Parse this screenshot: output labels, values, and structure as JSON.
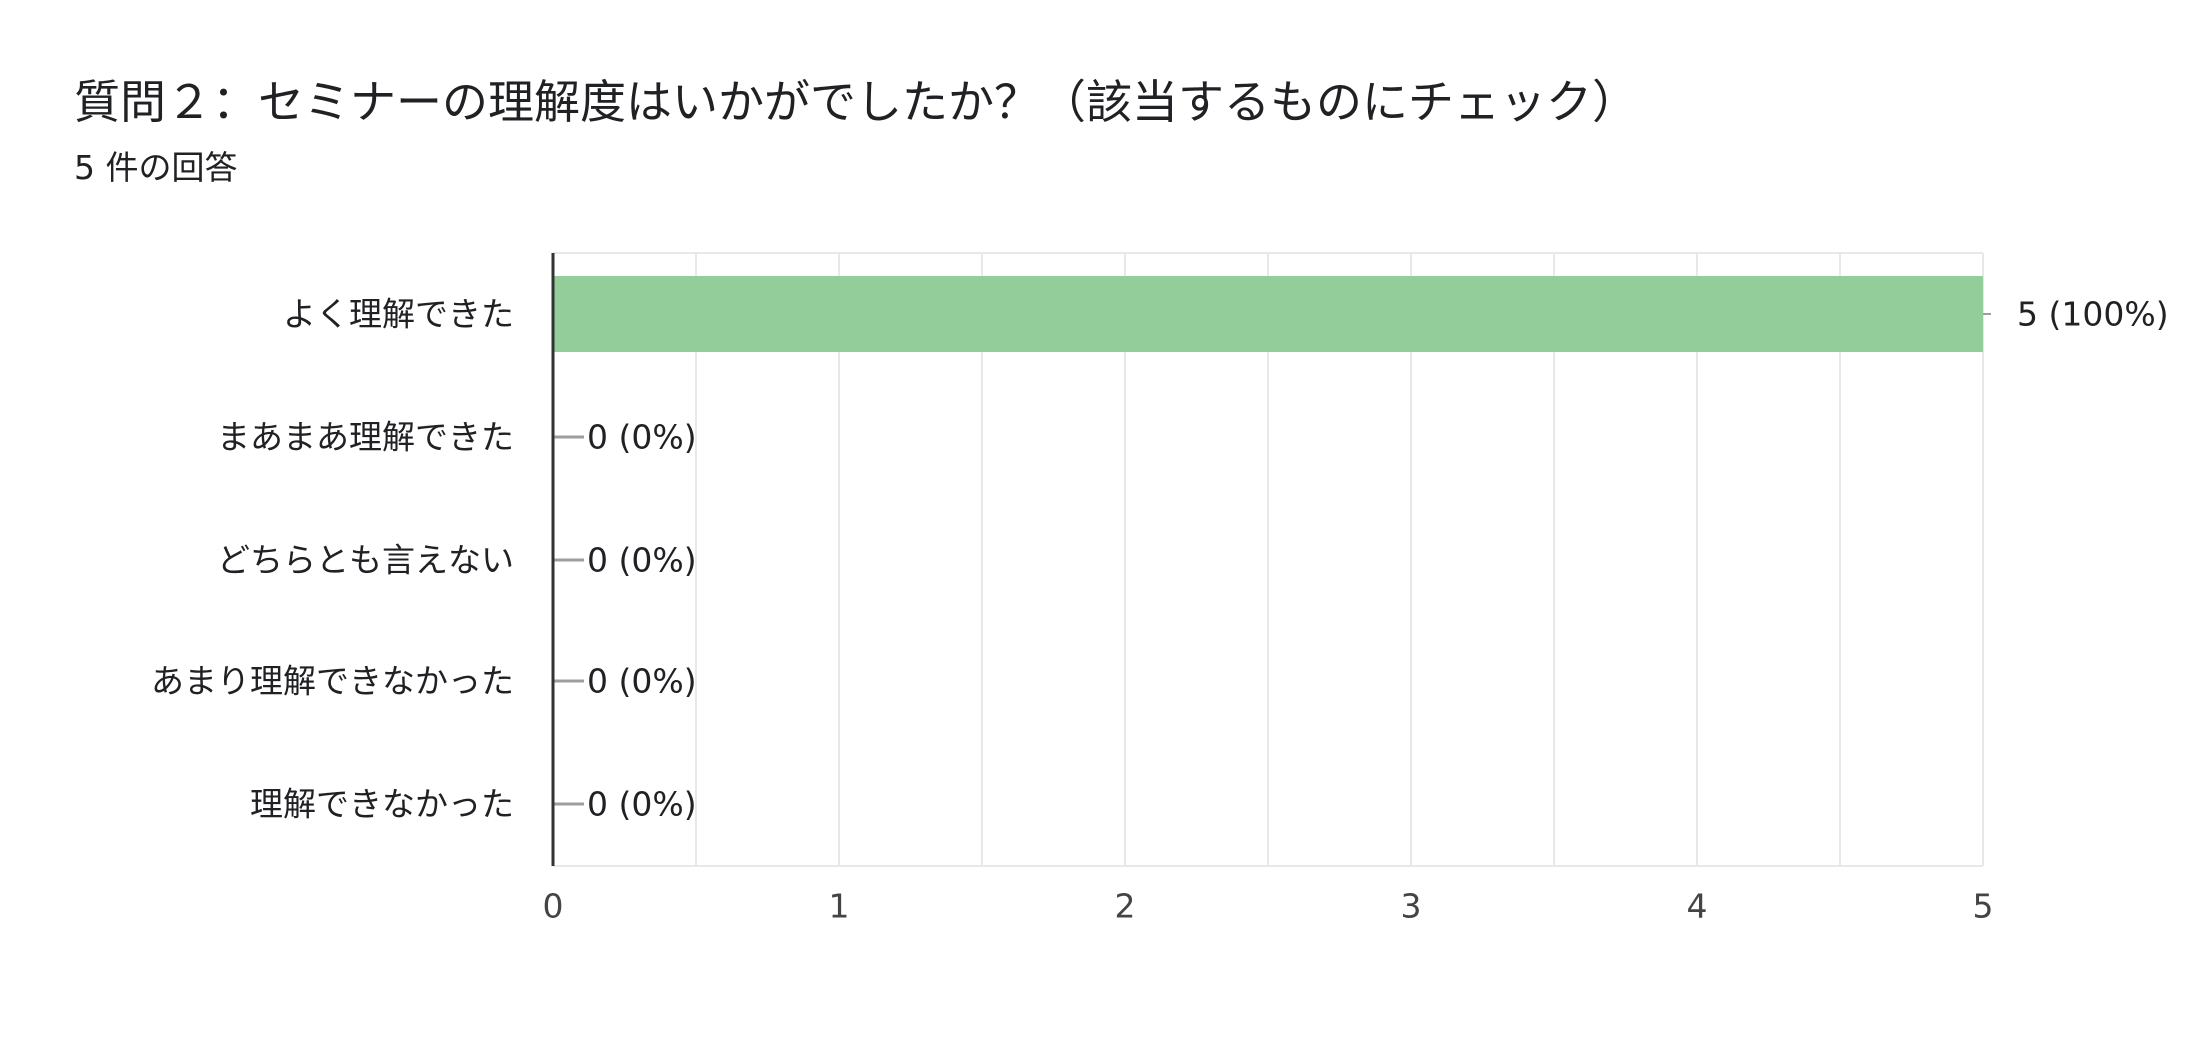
{
  "header": {
    "question_title": "質問２：セミナーの理解度はいかがでしたか？（該当するものにチェック）",
    "response_count": "5 件の回答"
  },
  "colors": {
    "bar": "#93ce9a",
    "grid": "#e8e8e8",
    "axis": "#333333",
    "zero_stub": "#9e9e9e",
    "text": "#202124",
    "tick_text": "#444444"
  },
  "chart_data": {
    "type": "bar",
    "orientation": "horizontal",
    "title": "質問２：セミナーの理解度はいかがでしたか？（該当するものにチェック）",
    "subtitle": "5 件の回答",
    "categories": [
      "よく理解できた",
      "まあまあ理解できた",
      "どちらとも言えない",
      "あまり理解できなかった",
      "理解できなかった"
    ],
    "values": [
      5,
      0,
      0,
      0,
      0
    ],
    "data_labels": [
      "5 (100%)",
      "0 (0%)",
      "0 (0%)",
      "0 (0%)",
      "0 (0%)"
    ],
    "xlim": [
      0,
      5
    ],
    "xticks": [
      "0",
      "1",
      "2",
      "3",
      "4",
      "5"
    ],
    "grid": true,
    "legend": false
  }
}
